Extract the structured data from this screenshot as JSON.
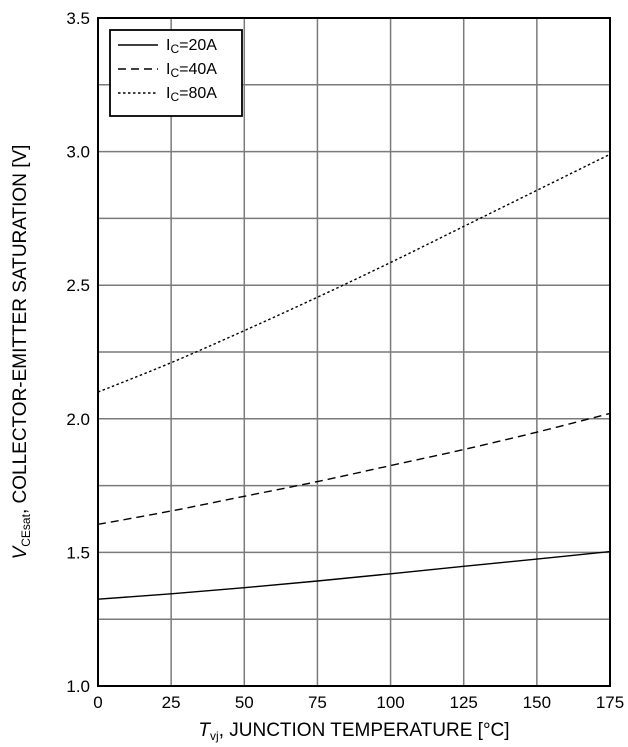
{
  "chart_data": {
    "type": "line",
    "x_ticks": [
      0,
      25,
      50,
      75,
      100,
      125,
      150,
      175
    ],
    "y_ticks": [
      1.0,
      1.5,
      2.0,
      2.5,
      3.0,
      3.5
    ],
    "y_tick_labels": [
      "1.0",
      "1.5",
      "2.0",
      "2.5",
      "3.0",
      "3.5"
    ],
    "xlim": [
      0,
      175
    ],
    "ylim": [
      1.0,
      3.5
    ],
    "grid": true,
    "legend_position": "top-left",
    "xlabel": {
      "symbol": "T",
      "subscript": "vj",
      "text": ", JUNCTION TEMPERATURE [°C]"
    },
    "ylabel": {
      "symbol": "V",
      "subscript": "CEsat",
      "text": ", COLLECTOR-EMITTER SATURATION [V]"
    },
    "series": [
      {
        "name_prefix": "I",
        "name_subscript": "C",
        "name_suffix": "=20A",
        "style": "solid",
        "x": [
          0,
          25,
          50,
          75,
          100,
          125,
          150,
          175
        ],
        "y": [
          1.325,
          1.345,
          1.368,
          1.393,
          1.42,
          1.448,
          1.475,
          1.503
        ]
      },
      {
        "name_prefix": "I",
        "name_subscript": "C",
        "name_suffix": "=40A",
        "style": "dashed",
        "x": [
          0,
          25,
          50,
          75,
          100,
          125,
          150,
          175
        ],
        "y": [
          1.605,
          1.655,
          1.71,
          1.765,
          1.825,
          1.885,
          1.95,
          2.02
        ]
      },
      {
        "name_prefix": "I",
        "name_subscript": "C",
        "name_suffix": "=80A",
        "style": "dotted",
        "x": [
          0,
          25,
          50,
          75,
          100,
          125,
          150,
          175
        ],
        "y": [
          2.1,
          2.21,
          2.33,
          2.455,
          2.585,
          2.72,
          2.855,
          2.99
        ]
      }
    ]
  }
}
